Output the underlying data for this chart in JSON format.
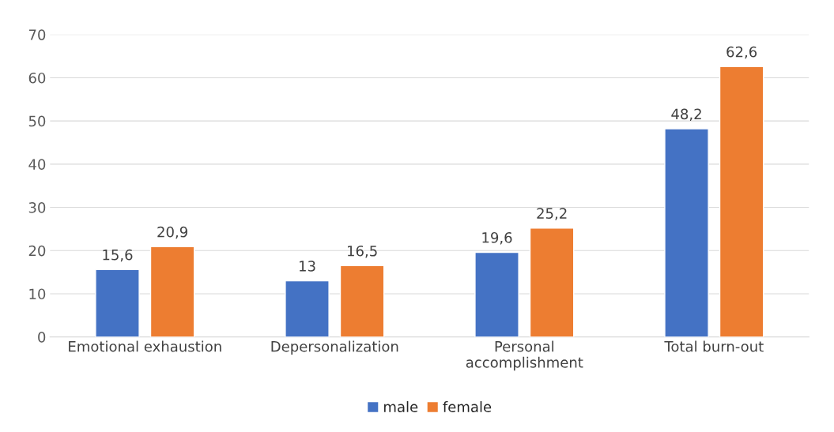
{
  "chart_data": {
    "type": "bar",
    "categories": [
      "Emotional exhaustion",
      "Depersonalization",
      "Personal\naccomplishment",
      "Total burn-out"
    ],
    "series": [
      {
        "name": "male",
        "color": "#4472c4",
        "values": [
          15.6,
          13,
          19.6,
          48.2
        ],
        "value_labels": [
          "15,6",
          "13",
          "19,6",
          "48,2"
        ]
      },
      {
        "name": "female",
        "color": "#ed7d31",
        "values": [
          20.9,
          16.5,
          25.2,
          62.6
        ],
        "value_labels": [
          "20,9",
          "16,5",
          "25,2",
          "62,6"
        ]
      }
    ],
    "ylim": [
      0,
      70
    ],
    "yticks": [
      0,
      10,
      20,
      30,
      40,
      50,
      60,
      70
    ],
    "grid": "y",
    "legend": "bottom"
  }
}
